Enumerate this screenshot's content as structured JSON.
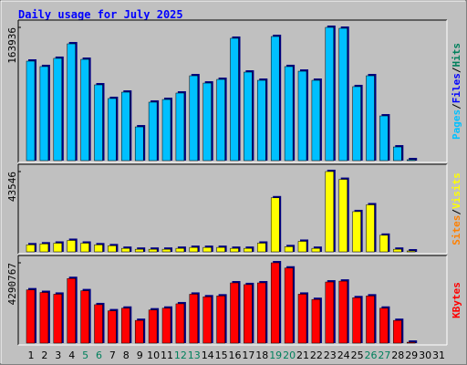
{
  "title": "Daily usage for July 2025",
  "chart_data": [
    {
      "type": "bar",
      "color": "#00c0ff",
      "values": [
        122400,
        115700,
        125800,
        143700,
        124600,
        93200,
        76400,
        84200,
        41500,
        71900,
        75200,
        83100,
        104400,
        95400,
        99900,
        150500,
        108900,
        98800,
        152700,
        115700,
        110000,
        98800,
        163936,
        162800,
        91000,
        104400,
        55000,
        16800,
        1100,
        0,
        0
      ],
      "ylim": [
        0,
        163936
      ],
      "yticks": [
        163936
      ],
      "legend": [
        {
          "label": "Pages",
          "color": "#00c0ff"
        },
        {
          "label": "/",
          "color": "#000000"
        },
        {
          "label": "Files",
          "color": "#0000ff"
        },
        {
          "label": "/",
          "color": "#000000"
        },
        {
          "label": "Hits",
          "color": "#00805c"
        }
      ]
    },
    {
      "type": "bar",
      "color": "#ffff00",
      "values": [
        3800,
        4300,
        4700,
        6200,
        4700,
        3800,
        3300,
        1900,
        1400,
        1400,
        1400,
        1900,
        2400,
        2400,
        2400,
        1900,
        1900,
        4700,
        29300,
        2800,
        5700,
        1900,
        43546,
        39300,
        21800,
        25500,
        9000,
        1400,
        500,
        0,
        0
      ],
      "ylim": [
        0,
        43546
      ],
      "yticks": [
        43546
      ],
      "legend": [
        {
          "label": "Sites",
          "color": "#ff8000"
        },
        {
          "label": "/",
          "color": "#000000"
        },
        {
          "label": "Visits",
          "color": "#ffff00"
        }
      ]
    },
    {
      "type": "bar",
      "color": "#ff0000",
      "values": [
        2845000,
        2705000,
        2612000,
        3451000,
        2798000,
        2052000,
        1726000,
        1866000,
        1213000,
        1772000,
        1866000,
        2099000,
        2612000,
        2472000,
        2519000,
        3218000,
        3125000,
        3218000,
        4290767,
        4011000,
        2612000,
        2332000,
        3265000,
        3311000,
        2425000,
        2519000,
        1866000,
        1213000,
        47000,
        0,
        0
      ],
      "ylim": [
        0,
        4290767
      ],
      "yticks": [
        4290767
      ],
      "legend": [
        {
          "label": "KBytes",
          "color": "#ff0000"
        }
      ],
      "categories": [
        "1",
        "2",
        "3",
        "4",
        "5",
        "6",
        "7",
        "8",
        "9",
        "10",
        "11",
        "12",
        "13",
        "14",
        "15",
        "16",
        "17",
        "18",
        "19",
        "20",
        "21",
        "22",
        "23",
        "24",
        "25",
        "26",
        "27",
        "28",
        "29",
        "30",
        "31"
      ],
      "category_colors": [
        "#000000",
        "#000000",
        "#000000",
        "#000000",
        "#00805c",
        "#00805c",
        "#000000",
        "#000000",
        "#000000",
        "#000000",
        "#000000",
        "#00805c",
        "#00805c",
        "#000000",
        "#000000",
        "#000000",
        "#000000",
        "#000000",
        "#00805c",
        "#00805c",
        "#000000",
        "#000000",
        "#000000",
        "#000000",
        "#000000",
        "#00805c",
        "#00805c",
        "#000000",
        "#000000",
        "#000000",
        "#000000"
      ]
    }
  ]
}
